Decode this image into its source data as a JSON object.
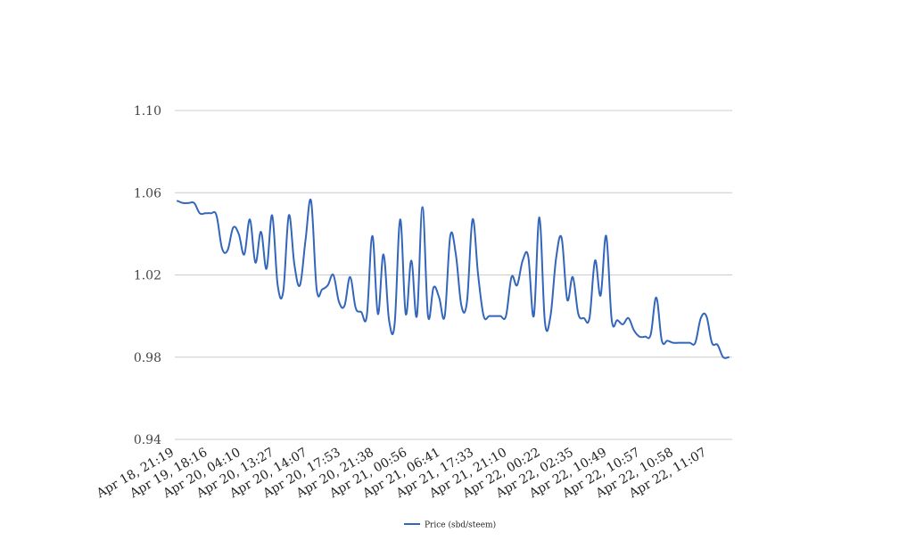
{
  "chart_data": {
    "type": "line",
    "ylim": [
      0.94,
      1.1
    ],
    "yticks": [
      "0.94",
      "0.98",
      "1.02",
      "1.06",
      "1.10"
    ],
    "ytick_values": [
      0.94,
      0.98,
      1.02,
      1.06,
      1.1
    ],
    "grid": true,
    "legend_position": "bottom-center",
    "xtick_labels": [
      "Apr 18, 21:19",
      "Apr 19, 18:16",
      "Apr 20, 04:10",
      "Apr 20, 13:27",
      "Apr 20, 14:07",
      "Apr 20, 17:53",
      "Apr 20, 21:38",
      "Apr 21, 00:56",
      "Apr 21, 06:41",
      "Apr 21, 17:33",
      "Apr 21, 21:10",
      "Apr 22, 00:22",
      "Apr 22, 02:35",
      "Apr 22, 10:49",
      "Apr 22, 10:57",
      "Apr 22, 10:58",
      "Apr 22, 11:07"
    ],
    "series": [
      {
        "name": "Price (sbd/steem)",
        "color": "#3366bb",
        "values": [
          1.056,
          1.055,
          1.055,
          1.055,
          1.05,
          1.05,
          1.05,
          1.049,
          1.033,
          1.032,
          1.043,
          1.04,
          1.03,
          1.047,
          1.026,
          1.041,
          1.023,
          1.049,
          1.015,
          1.012,
          1.049,
          1.025,
          1.015,
          1.037,
          1.056,
          1.013,
          1.013,
          1.015,
          1.02,
          1.007,
          1.005,
          1.019,
          1.004,
          1.002,
          1.0,
          1.039,
          1.001,
          1.03,
          0.998,
          0.996,
          1.047,
          1.001,
          1.027,
          1.0,
          1.053,
          1.0,
          1.014,
          1.009,
          1.0,
          1.039,
          1.03,
          1.005,
          1.007,
          1.047,
          1.02,
          1.0,
          1.0,
          1.0,
          1.0,
          1.0,
          1.019,
          1.015,
          1.027,
          1.029,
          1.0,
          1.048,
          0.997,
          1.0,
          1.028,
          1.038,
          1.008,
          1.019,
          1.001,
          0.999,
          0.999,
          1.027,
          1.01,
          1.039,
          0.998,
          0.998,
          0.996,
          0.999,
          0.993,
          0.99,
          0.99,
          0.991,
          1.009,
          0.988,
          0.988,
          0.987,
          0.987,
          0.987,
          0.987,
          0.987,
          0.999,
          1.0,
          0.987,
          0.986,
          0.98,
          0.98
        ]
      }
    ]
  }
}
